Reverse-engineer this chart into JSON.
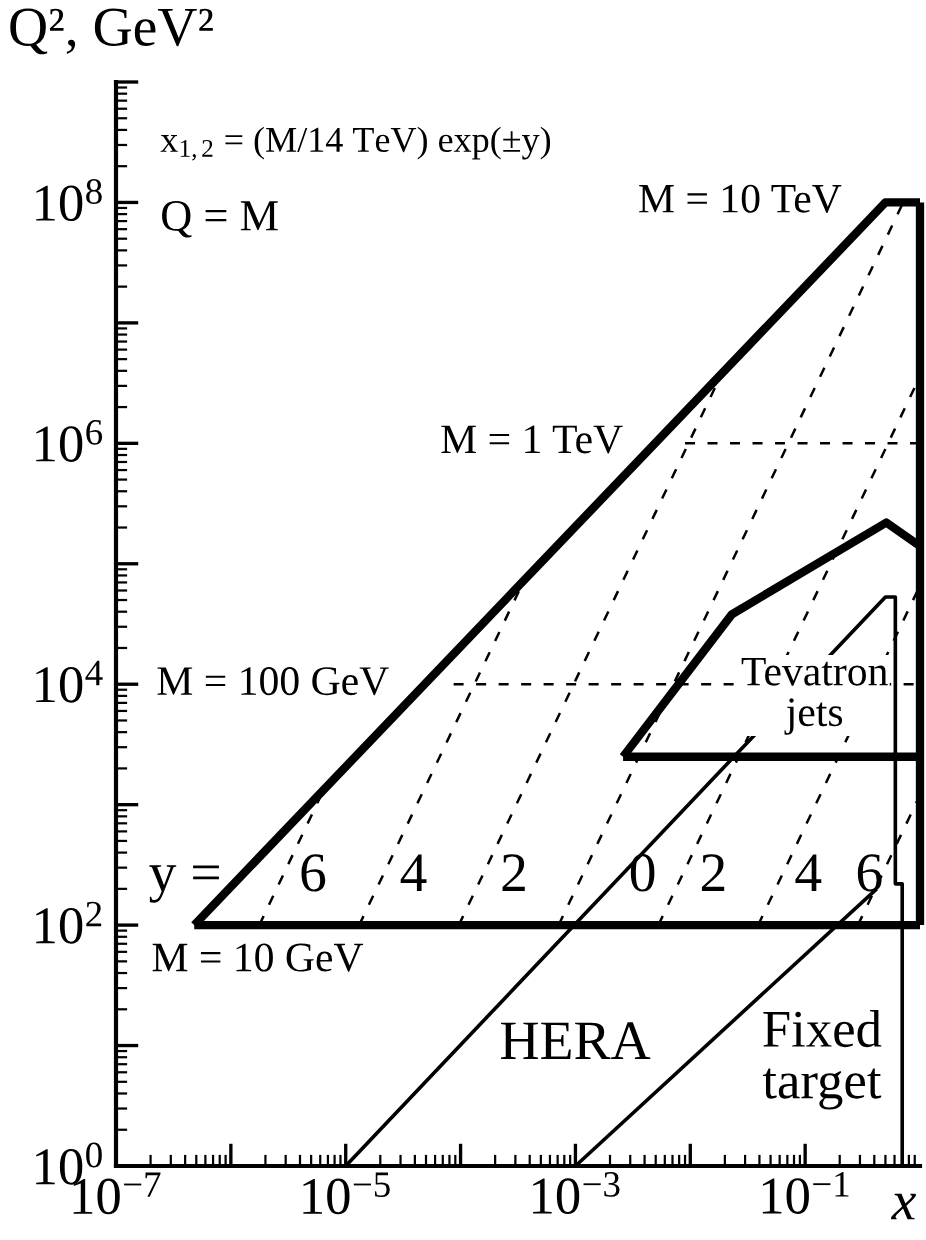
{
  "chart_data": {
    "type": "line",
    "xlabel": "x",
    "ylabel": "Q², GeV²",
    "log": "xy",
    "xlim": [
      1e-07,
      1
    ],
    "ylim": [
      1,
      1000000000.0
    ],
    "xticks": [
      {
        "value": 1e-07,
        "label": "10$^{−7}$"
      },
      {
        "value": 1e-06,
        "label": null
      },
      {
        "value": 1e-05,
        "label": "10$^{−5}$"
      },
      {
        "value": 0.0001,
        "label": null
      },
      {
        "value": 0.001,
        "label": "10$^{−3}$"
      },
      {
        "value": 0.01,
        "label": null
      },
      {
        "value": 0.1,
        "label": "10$^{−1}$"
      }
    ],
    "yticks": [
      {
        "value": 1,
        "label": "10$^{0}$"
      },
      {
        "value": 10,
        "label": null
      },
      {
        "value": 100,
        "label": "10$^{2}$"
      },
      {
        "value": 1000,
        "label": null
      },
      {
        "value": 10000,
        "label": "10$^{4}$"
      },
      {
        "value": 100000,
        "label": null
      },
      {
        "value": 1000000,
        "label": "10$^{6}$"
      },
      {
        "value": 10000000,
        "label": null
      },
      {
        "value": 100000000,
        "label": "10$^{8}$"
      },
      {
        "value": 1000000000,
        "label": null
      }
    ],
    "grid": false,
    "marker": "none",
    "series": [
      {
        "color": "#000000",
        "line_style": "solid",
        "x": [
          4.8e-07,
          0.5,
          1
        ],
        "values": [
          100,
          100000000,
          100000000
        ]
      },
      {
        "color": "#000000",
        "line_style": "solid",
        "x": [
          4.8e-07,
          1
        ],
        "values": [
          100,
          100
        ]
      },
      {
        "color": "#000000",
        "line_style": "solid",
        "x": [
          1,
          1
        ],
        "values": [
          100,
          100000000
        ]
      },
      {
        "color": "#000000",
        "line_style": "solid",
        "x": [
          0.0026,
          0.023,
          0.51,
          1
        ],
        "values": [
          2500,
          38000,
          220000,
          140000
        ]
      },
      {
        "color": "#000000",
        "line_style": "solid",
        "x": [
          0.0026,
          1
        ],
        "values": [
          2500,
          2500
        ]
      },
      {
        "color": "#000000",
        "line_style": "solid",
        "x": [
          1e-05,
          0.5,
          0.61,
          0.61,
          0.7,
          0.7
        ],
        "values": [
          1,
          53000,
          53000,
          220,
          220,
          1
        ]
      },
      {
        "color": "#000000",
        "line_style": "solid",
        "x": [
          0.001,
          0.42
        ],
        "values": [
          1,
          200
        ]
      },
      {
        "color": "#000000",
        "line_style": "dashed",
        "x": [
          8.7e-05,
          1
        ],
        "values": [
          10000,
          10000
        ]
      },
      {
        "color": "#000000",
        "line_style": "dashed",
        "x": [
          0.009,
          1
        ],
        "values": [
          1000000,
          1000000
        ]
      },
      {
        "color": "#000000",
        "line_style": "dashed",
        "x": [
          1.77e-06,
          6.5e-06
        ],
        "values": [
          100,
          1360
        ]
      },
      {
        "color": "#000000",
        "line_style": "dashed",
        "x": [
          1.31e-05,
          0.00036
        ],
        "values": [
          100,
          74000
        ]
      },
      {
        "color": "#000000",
        "line_style": "dashed",
        "x": [
          9.66e-05,
          0.0194
        ],
        "values": [
          100,
          4050000
        ]
      },
      {
        "color": "#000000",
        "line_style": "dashed",
        "x": [
          0.000714,
          0.714
        ],
        "values": [
          100,
          100000000
        ]
      },
      {
        "color": "#000000",
        "line_style": "dashed",
        "x": [
          0.00528,
          1
        ],
        "values": [
          100,
          3600000
        ]
      },
      {
        "color": "#000000",
        "line_style": "dashed",
        "x": [
          0.039,
          1
        ],
        "values": [
          100,
          66000
        ]
      },
      {
        "color": "#000000",
        "line_style": "dashed",
        "x": [
          0.288,
          1
        ],
        "values": [
          100,
          1200
        ]
      }
    ],
    "annotations": [
      "x$_{1,2}$ = (M/14 TeV) exp(±y)",
      "Q = M",
      "M = 10 TeV",
      "M = 1 TeV",
      "M = 100 GeV",
      "M = 10 GeV",
      "y =",
      "6",
      "4",
      "2",
      "0",
      "2",
      "4",
      "6",
      "Tevatron\njets",
      "HERA",
      "Fixed\ntarget"
    ]
  }
}
